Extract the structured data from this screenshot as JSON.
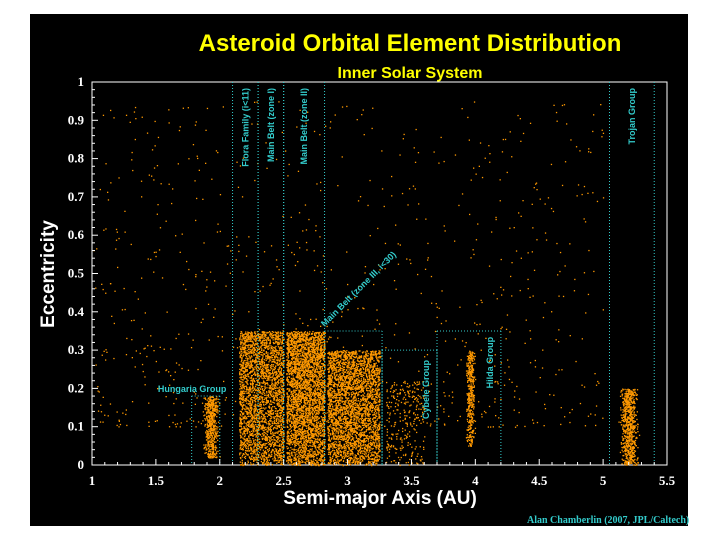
{
  "chart_data": {
    "type": "scatter",
    "title": "Asteroid Orbital Element Distribution",
    "subtitle": "Inner Solar System",
    "xlabel": "Semi-major Axis (AU)",
    "ylabel": "Eccentricity",
    "xlim": [
      1,
      5.5
    ],
    "ylim": [
      0,
      1
    ],
    "x_ticks": [
      "1",
      "1.5",
      "2",
      "2.5",
      "3",
      "3.5",
      "4",
      "4.5",
      "5",
      "5.5"
    ],
    "y_ticks": [
      "0",
      "0.1",
      "0.2",
      "0.3",
      "0.4",
      "0.5",
      "0.6",
      "0.7",
      "0.8",
      "0.9",
      "1"
    ],
    "grid": false,
    "point_color": "#ff9900",
    "zone_color": "#33cccc",
    "zones": [
      {
        "label": "Hungaria Group",
        "x_range": [
          1.78,
          2.0
        ],
        "e_max": 0.18
      },
      {
        "label": "Flora Family (i<11)",
        "x_range": [
          2.1,
          2.3
        ],
        "e_max": 1.0
      },
      {
        "label": "Main Belt (zone I)",
        "x_range": [
          2.3,
          2.5
        ],
        "e_max": 1.0
      },
      {
        "label": "Main Belt (zone II)",
        "x_range": [
          2.5,
          2.82
        ],
        "e_max": 1.0
      },
      {
        "label": "Main Belt (zone III, i<30)",
        "x_range": [
          2.82,
          3.27
        ],
        "e_max": 0.35
      },
      {
        "label": "Cybele Group",
        "x_range": [
          3.27,
          3.7
        ],
        "e_max": 0.3
      },
      {
        "label": "Hilda Group",
        "x_range": [
          3.7,
          4.2
        ],
        "e_max": 0.35
      },
      {
        "label": "Trojan Group",
        "x_range": [
          5.05,
          5.4
        ],
        "e_max": 1.0
      }
    ],
    "clusters": [
      {
        "name": "Hungaria Group",
        "x_center": 1.93,
        "x_spread": 0.05,
        "e_range": [
          0.02,
          0.18
        ],
        "n": 500
      },
      {
        "name": "Flora / Main Belt (zone I)",
        "x_range": [
          2.15,
          2.5
        ],
        "e_range": [
          0.0,
          0.35
        ],
        "n": 2600
      },
      {
        "name": "Main Belt (zone II)",
        "x_range": [
          2.52,
          2.82
        ],
        "e_range": [
          0.0,
          0.35
        ],
        "n": 3000
      },
      {
        "name": "Main Belt (zone III)",
        "x_range": [
          2.84,
          3.25
        ],
        "e_range": [
          0.0,
          0.3
        ],
        "n": 3000
      },
      {
        "name": "Cybele Group",
        "x_range": [
          3.3,
          3.6
        ],
        "e_range": [
          0.0,
          0.22
        ],
        "n": 260
      },
      {
        "name": "Hilda Group",
        "x_center": 3.96,
        "x_spread": 0.03,
        "e_range": [
          0.05,
          0.3
        ],
        "n": 380
      },
      {
        "name": "Trojan Group",
        "x_center": 5.2,
        "x_spread": 0.06,
        "e_range": [
          0.0,
          0.2
        ],
        "n": 700
      },
      {
        "name": "Scattered",
        "x_range": [
          1.0,
          5.0
        ],
        "e_range": [
          0.1,
          0.95
        ],
        "n": 900
      }
    ]
  },
  "credit": "Alan Chamberlin (2007, JPL/Caltech)"
}
